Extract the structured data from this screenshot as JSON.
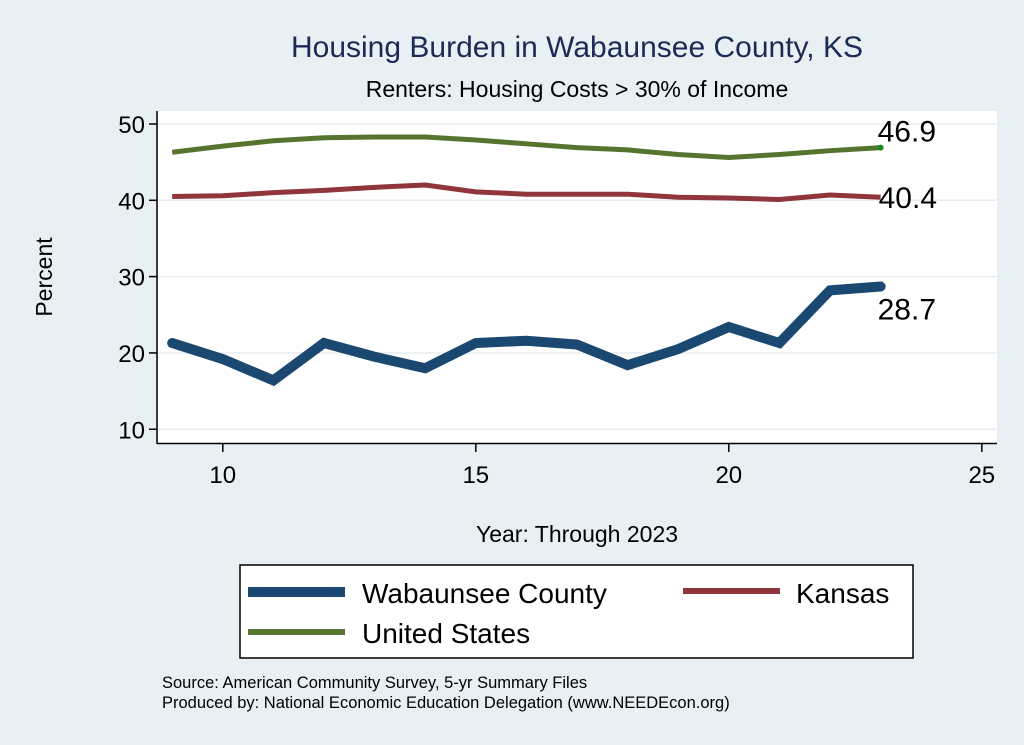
{
  "chart_data": {
    "type": "line",
    "title": "Housing Burden in Wabaunsee County, KS",
    "subtitle": "Renters: Housing Costs > 30% of Income",
    "xlabel": "Year: Through 2023",
    "ylabel": "Percent",
    "xlim": [
      8.7,
      25.3
    ],
    "ylim": [
      8.2,
      51.7
    ],
    "xticks": [
      10,
      15,
      20,
      25
    ],
    "yticks": [
      10,
      20,
      30,
      40,
      50
    ],
    "grid": true,
    "legend_position": "bottom",
    "x": [
      9,
      10,
      11,
      12,
      13,
      14,
      15,
      16,
      17,
      18,
      19,
      20,
      21,
      22,
      23
    ],
    "series": [
      {
        "name": "Wabaunsee County",
        "color": "#1b4870",
        "values": [
          21.3,
          19.2,
          16.4,
          21.3,
          19.5,
          18.0,
          21.3,
          21.6,
          21.1,
          18.4,
          20.5,
          23.4,
          21.3,
          28.2,
          28.7
        ],
        "end_label": "28.7"
      },
      {
        "name": "Kansas",
        "color": "#90353b",
        "values": [
          40.5,
          40.6,
          41.0,
          41.3,
          41.7,
          42.0,
          41.1,
          40.8,
          40.8,
          40.8,
          40.4,
          40.3,
          40.1,
          40.7,
          40.4
        ],
        "end_label": "40.4"
      },
      {
        "name": "United States",
        "color": "#55752f",
        "values": [
          46.3,
          47.1,
          47.8,
          48.2,
          48.3,
          48.3,
          47.9,
          47.4,
          46.9,
          46.6,
          46.0,
          45.6,
          46.0,
          46.5,
          46.9
        ],
        "end_label": "46.9"
      }
    ],
    "notes": [
      "Source: American Community Survey, 5-yr Summary Files",
      "Produced by: National Economic Education Delegation (www.NEEDEcon.org)"
    ]
  }
}
